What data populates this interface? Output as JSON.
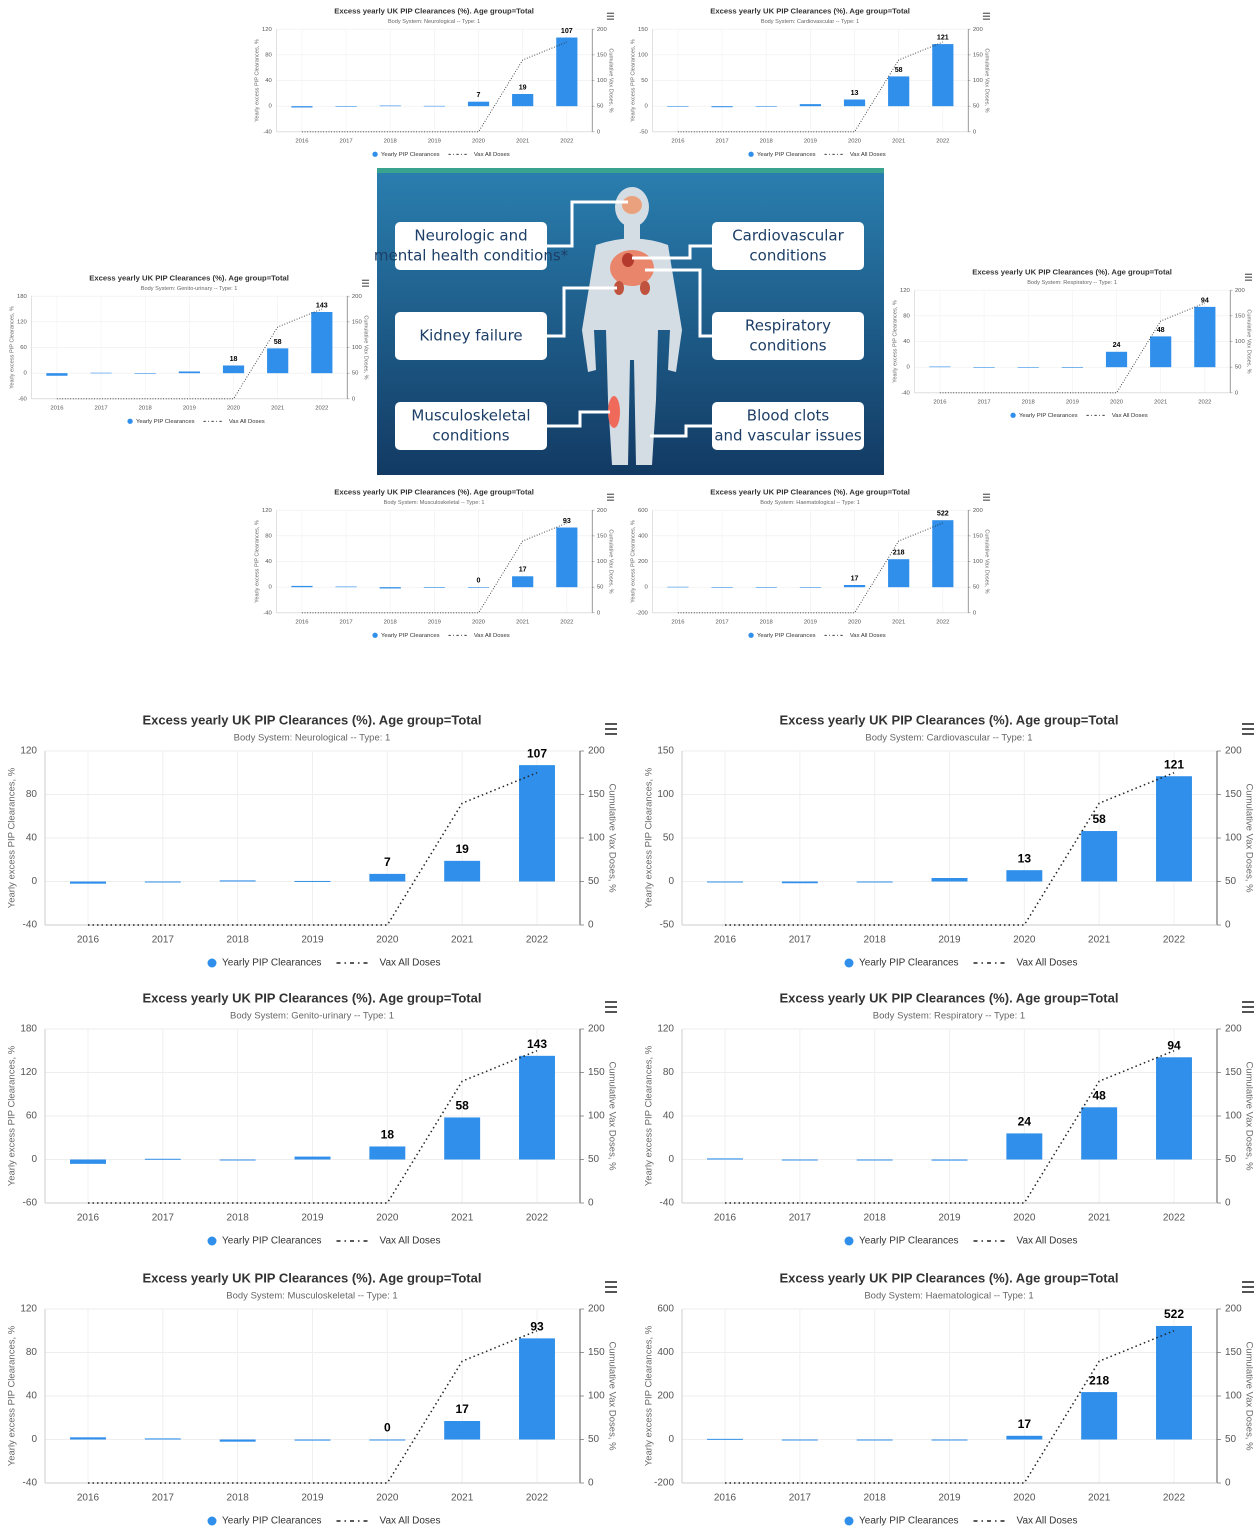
{
  "chart_data": [
    {
      "type": "bar",
      "title": "Excess yearly UK PIP Clearances (%). Age group=Total",
      "subtitle": "Body System: Neurological -- Type: 1",
      "ylabel": "Yearly excess PIP Clearances, %",
      "y2label": "Cumulative Vax Doses, %",
      "categories": [
        "2016",
        "2017",
        "2018",
        "2019",
        "2020",
        "2021",
        "2022"
      ],
      "series": [
        {
          "name": "Yearly PIP Clearances",
          "color": "#2f8fea",
          "values": [
            -2,
            0,
            1,
            0.5,
            7,
            19,
            107
          ],
          "value_labels": [
            null,
            null,
            null,
            null,
            "7",
            "19",
            "107"
          ]
        },
        {
          "name": "Vax All Doses",
          "type": "line",
          "axis": "y2",
          "color": "#222222",
          "values": [
            0,
            0,
            0,
            0,
            0,
            140,
            175
          ]
        }
      ],
      "ylim": [
        -40,
        120
      ],
      "yticks": [
        -40,
        0,
        40,
        80,
        120
      ],
      "y2lim": [
        0,
        200
      ],
      "y2ticks": [
        0,
        50,
        100,
        150,
        200
      ],
      "grid": true
    },
    {
      "type": "bar",
      "title": "Excess yearly UK PIP Clearances (%). Age group=Total",
      "subtitle": "Body System: Cardiovascular -- Type: 1",
      "ylabel": "Yearly excess PIP Clearances, %",
      "y2label": "Cumulative Vax Doses, %",
      "categories": [
        "2016",
        "2017",
        "2018",
        "2019",
        "2020",
        "2021",
        "2022"
      ],
      "series": [
        {
          "name": "Yearly PIP Clearances",
          "color": "#2f8fea",
          "values": [
            -1,
            -2,
            0,
            4,
            13,
            58,
            121
          ],
          "value_labels": [
            null,
            null,
            null,
            null,
            "13",
            "58",
            "121"
          ]
        },
        {
          "name": "Vax All Doses",
          "type": "line",
          "axis": "y2",
          "color": "#222222",
          "values": [
            0,
            0,
            0,
            0,
            0,
            140,
            175
          ]
        }
      ],
      "ylim": [
        -50,
        150
      ],
      "yticks": [
        -50,
        0,
        50,
        100,
        150
      ],
      "y2lim": [
        0,
        200
      ],
      "y2ticks": [
        0,
        50,
        100,
        150,
        200
      ],
      "grid": true
    },
    {
      "type": "bar",
      "title": "Excess yearly UK PIP Clearances (%). Age group=Total",
      "subtitle": "Body System: Genito-urinary -- Type: 1",
      "ylabel": "Yearly excess PIP Clearances, %",
      "y2label": "Cumulative Vax Doses, %",
      "categories": [
        "2016",
        "2017",
        "2018",
        "2019",
        "2020",
        "2021",
        "2022"
      ],
      "series": [
        {
          "name": "Yearly PIP Clearances",
          "color": "#2f8fea",
          "values": [
            -6,
            1,
            0,
            4,
            18,
            58,
            143
          ],
          "value_labels": [
            null,
            null,
            null,
            null,
            "18",
            "58",
            "143"
          ]
        },
        {
          "name": "Vax All Doses",
          "type": "line",
          "axis": "y2",
          "color": "#222222",
          "values": [
            0,
            0,
            0,
            0,
            0,
            140,
            175
          ]
        }
      ],
      "ylim": [
        -60,
        180
      ],
      "yticks": [
        -60,
        0,
        60,
        120,
        180
      ],
      "y2lim": [
        0,
        200
      ],
      "y2ticks": [
        0,
        50,
        100,
        150,
        200
      ],
      "grid": true
    },
    {
      "type": "bar",
      "title": "Excess yearly UK PIP Clearances (%). Age group=Total",
      "subtitle": "Body System: Respiratory -- Type: 1",
      "ylabel": "Yearly excess PIP Clearances, %",
      "y2label": "Cumulative Vax Doses, %",
      "categories": [
        "2016",
        "2017",
        "2018",
        "2019",
        "2020",
        "2021",
        "2022"
      ],
      "series": [
        {
          "name": "Yearly PIP Clearances",
          "color": "#2f8fea",
          "values": [
            1,
            0,
            0,
            -1,
            24,
            48,
            94
          ],
          "value_labels": [
            null,
            null,
            null,
            null,
            "24",
            "48",
            "94"
          ]
        },
        {
          "name": "Vax All Doses",
          "type": "line",
          "axis": "y2",
          "color": "#222222",
          "values": [
            0,
            0,
            0,
            0,
            0,
            140,
            175
          ]
        }
      ],
      "ylim": [
        -40,
        120
      ],
      "yticks": [
        -40,
        0,
        40,
        80,
        120
      ],
      "y2lim": [
        0,
        200
      ],
      "y2ticks": [
        0,
        50,
        100,
        150,
        200
      ],
      "grid": true
    },
    {
      "type": "bar",
      "title": "Excess yearly UK PIP Clearances (%). Age group=Total",
      "subtitle": "Body System: Musculoskeletal -- Type: 1",
      "ylabel": "Yearly excess PIP Clearances, %",
      "y2label": "Cumulative Vax Doses, %",
      "categories": [
        "2016",
        "2017",
        "2018",
        "2019",
        "2020",
        "2021",
        "2022"
      ],
      "series": [
        {
          "name": "Yearly PIP Clearances",
          "color": "#2f8fea",
          "values": [
            2,
            1,
            -2,
            -1,
            0,
            17,
            93
          ],
          "value_labels": [
            null,
            null,
            null,
            null,
            "0",
            "17",
            "93"
          ]
        },
        {
          "name": "Vax All Doses",
          "type": "line",
          "axis": "y2",
          "color": "#222222",
          "values": [
            0,
            0,
            0,
            0,
            0,
            140,
            175
          ]
        }
      ],
      "ylim": [
        -40,
        120
      ],
      "yticks": [
        -40,
        0,
        40,
        80,
        120
      ],
      "y2lim": [
        0,
        200
      ],
      "y2ticks": [
        0,
        50,
        100,
        150,
        200
      ],
      "grid": true
    },
    {
      "type": "bar",
      "title": "Excess yearly UK PIP Clearances (%). Age group=Total",
      "subtitle": "Body System: Haematological -- Type: 1",
      "ylabel": "Yearly excess PIP Clearances, %",
      "y2label": "Cumulative Vax Doses, %",
      "categories": [
        "2016",
        "2017",
        "2018",
        "2019",
        "2020",
        "2021",
        "2022"
      ],
      "series": [
        {
          "name": "Yearly PIP Clearances",
          "color": "#2f8fea",
          "values": [
            3,
            0,
            0,
            0,
            17,
            218,
            522
          ],
          "value_labels": [
            null,
            null,
            null,
            null,
            "17",
            "218",
            "522"
          ]
        },
        {
          "name": "Vax All Doses",
          "type": "line",
          "axis": "y2",
          "color": "#222222",
          "values": [
            0,
            0,
            0,
            0,
            0,
            140,
            175
          ]
        }
      ],
      "ylim": [
        -200,
        600
      ],
      "yticks": [
        -200,
        0,
        200,
        400,
        600
      ],
      "y2lim": [
        0,
        200
      ],
      "y2ticks": [
        0,
        50,
        100,
        150,
        200
      ],
      "grid": true
    }
  ],
  "infographic": {
    "labels": [
      [
        "Neurologic and",
        "mental health conditions*"
      ],
      [
        "Kidney failure"
      ],
      [
        "Musculoskeletal",
        "conditions"
      ],
      [
        "Cardiovascular",
        "conditions"
      ],
      [
        "Respiratory",
        "conditions"
      ],
      [
        "Blood clots",
        "and vascular issues"
      ]
    ]
  }
}
